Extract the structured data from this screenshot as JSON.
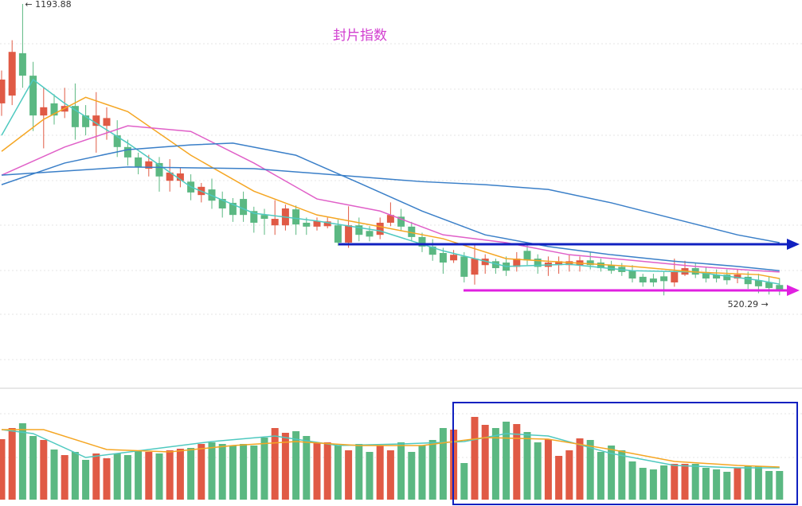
{
  "chart_data": [
    {
      "type": "candlestick",
      "title": "封片指数",
      "up_color": "#e05a45",
      "down_color": "#5bb882",
      "ylim": [
        320,
        1203
      ],
      "open": [
        964,
        982,
        1080,
        1028,
        936,
        964,
        945,
        958,
        936,
        912,
        912,
        890,
        863,
        839,
        813,
        826,
        785,
        785,
        783,
        752,
        765,
        743,
        734,
        743,
        715,
        706,
        682,
        682,
        719,
        688,
        679,
        680,
        682,
        642,
        682,
        669,
        660,
        688,
        702,
        679,
        655,
        633,
        618,
        601,
        610,
        568,
        590,
        599,
        596,
        586,
        623,
        605,
        586,
        590,
        590,
        590,
        601,
        596,
        590,
        586,
        577,
        563,
        559,
        564,
        550,
        568,
        583,
        574,
        568,
        568,
        559,
        563,
        555,
        550,
        544
      ],
      "close": [
        1019,
        1083,
        1028,
        936,
        955,
        936,
        958,
        909,
        909,
        936,
        930,
        863,
        839,
        817,
        830,
        795,
        804,
        802,
        758,
        771,
        739,
        721,
        706,
        706,
        688,
        697,
        697,
        721,
        684,
        679,
        692,
        691,
        642,
        682,
        660,
        656,
        688,
        706,
        679,
        655,
        633,
        614,
        596,
        614,
        563,
        605,
        605,
        583,
        577,
        605,
        601,
        586,
        596,
        599,
        599,
        601,
        590,
        583,
        577,
        574,
        559,
        550,
        550,
        553,
        574,
        583,
        568,
        559,
        559,
        555,
        568,
        546,
        541,
        537,
        533
      ],
      "high": [
        1040,
        1110,
        1193.88,
        1060,
        1000,
        985,
        1000,
        1010,
        960,
        990,
        955,
        925,
        880,
        850,
        845,
        840,
        835,
        815,
        800,
        780,
        790,
        760,
        745,
        760,
        725,
        720,
        740,
        730,
        728,
        700,
        700,
        700,
        695,
        726,
        700,
        680,
        700,
        735,
        720,
        690,
        665,
        650,
        630,
        625,
        620,
        640,
        615,
        605,
        610,
        620,
        640,
        615,
        610,
        610,
        615,
        610,
        620,
        605,
        600,
        595,
        590,
        570,
        570,
        575,
        605,
        600,
        595,
        585,
        580,
        580,
        580,
        575,
        570,
        565,
        560
      ],
      "low": [
        935,
        960,
        1000,
        900,
        860,
        915,
        930,
        880,
        890,
        850,
        880,
        840,
        820,
        800,
        795,
        760,
        760,
        770,
        740,
        735,
        720,
        700,
        690,
        690,
        665,
        660,
        660,
        670,
        660,
        660,
        670,
        675,
        635,
        630,
        645,
        645,
        650,
        680,
        670,
        645,
        620,
        600,
        570,
        595,
        550,
        545,
        570,
        570,
        565,
        575,
        590,
        570,
        565,
        570,
        575,
        575,
        580,
        575,
        570,
        565,
        550,
        540,
        540,
        520,
        540,
        565,
        560,
        550,
        550,
        545,
        548,
        535,
        525,
        522,
        520.29
      ],
      "annotations": [
        {
          "label": "← 1193.88",
          "value": 1193.88
        },
        {
          "label": "520.29 →",
          "value": 520.29
        }
      ],
      "series": [
        {
          "color": "#4fc9c0",
          "x": [
            0,
            3,
            6,
            12,
            18,
            24,
            30,
            36,
            42,
            48,
            54,
            60,
            66,
            72,
            74
          ],
          "values": [
            890,
            1019,
            964,
            872,
            771,
            710,
            692,
            669,
            623,
            587,
            592,
            577,
            574,
            555,
            546
          ]
        },
        {
          "color": "#f5a623",
          "x": [
            0,
            4,
            8,
            12,
            18,
            24,
            30,
            36,
            42,
            48,
            54,
            60,
            66,
            72,
            74
          ],
          "values": [
            853,
            927,
            978,
            945,
            844,
            761,
            706,
            679,
            651,
            605,
            596,
            587,
            574,
            568,
            559
          ]
        },
        {
          "color": "#e060c8",
          "x": [
            0,
            6,
            12,
            18,
            24,
            30,
            36,
            42,
            48,
            54,
            60,
            66,
            72,
            74
          ],
          "values": [
            798,
            863,
            912,
            899,
            826,
            743,
            715,
            660,
            642,
            614,
            601,
            587,
            577,
            574
          ]
        },
        {
          "color": "#3a7fc8",
          "x": [
            0,
            6,
            12,
            18,
            22,
            28,
            34,
            40,
            46,
            52,
            58,
            64,
            70,
            74
          ],
          "values": [
            776,
            826,
            857,
            868,
            872,
            844,
            780,
            715,
            660,
            633,
            614,
            599,
            587,
            577
          ]
        },
        {
          "color": "#3a7fc8",
          "x": [
            0,
            12,
            24,
            32,
            40,
            46,
            52,
            58,
            64,
            70,
            74
          ],
          "values": [
            798,
            817,
            813,
            798,
            783,
            776,
            765,
            734,
            697,
            660,
            642
          ]
        }
      ]
    },
    {
      "type": "volume",
      "ylim": [
        0,
        140
      ],
      "values": [
        76,
        90,
        96,
        80,
        75,
        63,
        56,
        60,
        50,
        58,
        52,
        58,
        56,
        62,
        60,
        58,
        62,
        64,
        65,
        70,
        72,
        70,
        68,
        70,
        68,
        78,
        90,
        84,
        86,
        80,
        72,
        72,
        68,
        62,
        70,
        60,
        68,
        62,
        72,
        60,
        68,
        75,
        90,
        88,
        46,
        104,
        94,
        90,
        98,
        95,
        85,
        72,
        76,
        55,
        62,
        77,
        75,
        60,
        68,
        62,
        48,
        40,
        38,
        43,
        45,
        45,
        45,
        40,
        38,
        35,
        40,
        42,
        42,
        36,
        36
      ],
      "series": [
        {
          "color": "#4fc9c0",
          "x": [
            0,
            3,
            8,
            14,
            20,
            26,
            32,
            38,
            44,
            48,
            52,
            58,
            64,
            70,
            74
          ],
          "values": [
            88,
            83,
            53,
            63,
            73,
            80,
            68,
            70,
            73,
            83,
            80,
            58,
            43,
            40,
            40
          ]
        },
        {
          "color": "#f5a623",
          "x": [
            0,
            4,
            10,
            16,
            22,
            28,
            34,
            40,
            46,
            52,
            58,
            64,
            70,
            74
          ],
          "values": [
            88,
            88,
            63,
            60,
            68,
            73,
            68,
            68,
            78,
            76,
            63,
            48,
            43,
            41
          ]
        }
      ]
    }
  ]
}
